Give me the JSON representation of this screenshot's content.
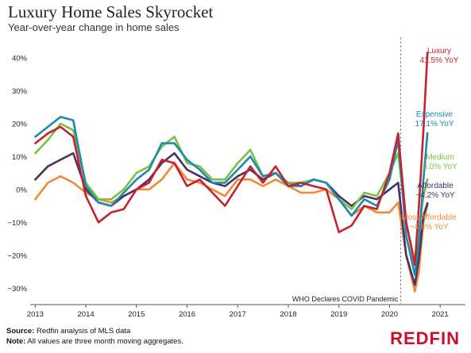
{
  "title": "Luxury Home Sales Skyrocket",
  "subtitle": "Year-over-year change in home sales",
  "footer": {
    "source_label": "Source:",
    "source_text": "Redfin analysis of MLS data",
    "note_label": "Note:",
    "note_text": "All values are three month moving aggregates."
  },
  "logo": "REDFIN",
  "chart_data": {
    "type": "line",
    "title": "Luxury Home Sales Skyrocket",
    "subtitle": "Year-over-year change in home sales",
    "xlabel": "",
    "ylabel": "",
    "xlim": [
      2012.9,
      2021.5
    ],
    "ylim": [
      -35,
      45
    ],
    "x_ticks": [
      2013,
      2014,
      2015,
      2016,
      2017,
      2018,
      2019,
      2020,
      2021
    ],
    "x_tick_labels": [
      "2013",
      "2014",
      "2015",
      "2016",
      "2017",
      "2018",
      "2019",
      "2020",
      "2021"
    ],
    "y_ticks": [
      -30,
      -20,
      -10,
      0,
      10,
      20,
      30,
      40
    ],
    "y_tick_labels": [
      "−30%",
      "−20%",
      "−10%",
      "0%",
      "10%",
      "20%",
      "30%",
      "40%"
    ],
    "grid": false,
    "annotation": {
      "x": 2020.22,
      "text": "WHO Declares COVID Pandemic"
    },
    "series": [
      {
        "name": "Most Affordable",
        "value_label": "−4.8% YoY",
        "color": "#f08a34",
        "x": [
          2013.0,
          2013.25,
          2013.5,
          2013.75,
          2014.0,
          2014.25,
          2014.5,
          2014.75,
          2015.0,
          2015.25,
          2015.5,
          2015.75,
          2016.0,
          2016.25,
          2016.5,
          2016.75,
          2017.0,
          2017.25,
          2017.5,
          2017.75,
          2018.0,
          2018.25,
          2018.5,
          2018.75,
          2019.0,
          2019.25,
          2019.5,
          2019.75,
          2020.0,
          2020.17,
          2020.33,
          2020.5,
          2020.58,
          2020.67,
          2020.75
        ],
        "y": [
          -3,
          2,
          4,
          2,
          -1,
          -3,
          -4,
          -2,
          0,
          0,
          3,
          8,
          3,
          2,
          0,
          -2,
          3,
          3,
          1,
          3,
          1,
          -1,
          -1,
          0,
          -3,
          -8,
          -5,
          -7,
          -7,
          -4,
          -20,
          -31,
          -25,
          -10,
          -4.8
        ]
      },
      {
        "name": "Affordable",
        "value_label": "−4.2% YoY",
        "color": "#4b3060",
        "x": [
          2013.0,
          2013.25,
          2013.5,
          2013.75,
          2014.0,
          2014.25,
          2014.5,
          2014.75,
          2015.0,
          2015.25,
          2015.5,
          2015.75,
          2016.0,
          2016.25,
          2016.5,
          2016.75,
          2017.0,
          2017.25,
          2017.5,
          2017.75,
          2018.0,
          2018.25,
          2018.5,
          2018.75,
          2019.0,
          2019.25,
          2019.5,
          2019.75,
          2020.0,
          2020.17,
          2020.33,
          2020.5,
          2020.58,
          2020.67,
          2020.75
        ],
        "y": [
          3,
          7,
          9,
          11,
          0,
          -4,
          -5,
          -2,
          0,
          3,
          8,
          11,
          6,
          4,
          2,
          1,
          4,
          6,
          3,
          5,
          2,
          1,
          3,
          2,
          -2,
          -5,
          -2,
          -3,
          0,
          2,
          -20,
          -29,
          -21,
          -8,
          -4.2
        ]
      },
      {
        "name": "Medium",
        "value_label": "3.0% YoY",
        "color": "#7ac143",
        "x": [
          2013.0,
          2013.25,
          2013.5,
          2013.75,
          2014.0,
          2014.25,
          2014.5,
          2014.75,
          2015.0,
          2015.25,
          2015.5,
          2015.75,
          2016.0,
          2016.25,
          2016.5,
          2016.75,
          2017.0,
          2017.25,
          2017.5,
          2017.75,
          2018.0,
          2018.25,
          2018.5,
          2018.75,
          2019.0,
          2019.25,
          2019.5,
          2019.75,
          2020.0,
          2020.17,
          2020.33,
          2020.5,
          2020.58,
          2020.67,
          2020.75
        ],
        "y": [
          11,
          15,
          20,
          18,
          2,
          -3,
          -3,
          0,
          5,
          7,
          13,
          16,
          8,
          7,
          3,
          3,
          8,
          12,
          4,
          5,
          2,
          2,
          3,
          2,
          -3,
          -6,
          -1,
          -2,
          5,
          11,
          -10,
          -22,
          -13,
          -2,
          3.0
        ]
      },
      {
        "name": "Expensive",
        "value_label": "17.1% YoY",
        "color": "#1d8ab0",
        "x": [
          2013.0,
          2013.25,
          2013.5,
          2013.75,
          2014.0,
          2014.25,
          2014.5,
          2014.75,
          2015.0,
          2015.25,
          2015.5,
          2015.75,
          2016.0,
          2016.25,
          2016.5,
          2016.75,
          2017.0,
          2017.25,
          2017.5,
          2017.75,
          2018.0,
          2018.25,
          2018.5,
          2018.75,
          2019.0,
          2019.25,
          2019.5,
          2019.75,
          2020.0,
          2020.17,
          2020.33,
          2020.5,
          2020.58,
          2020.67,
          2020.75
        ],
        "y": [
          16,
          19,
          22,
          21,
          1,
          -4,
          -5,
          -1,
          3,
          6,
          14,
          14,
          9,
          6,
          2,
          2,
          6,
          10,
          4,
          5,
          1,
          1,
          3,
          2,
          -3,
          -8,
          -3,
          -5,
          3,
          15,
          -14,
          -26,
          -16,
          3,
          17.1
        ]
      },
      {
        "name": "Luxury",
        "value_label": "41.5% YoY",
        "color": "#c8202f",
        "x": [
          2013.0,
          2013.25,
          2013.5,
          2013.75,
          2014.0,
          2014.25,
          2014.5,
          2014.75,
          2015.0,
          2015.25,
          2015.5,
          2015.75,
          2016.0,
          2016.25,
          2016.5,
          2016.75,
          2017.0,
          2017.25,
          2017.5,
          2017.75,
          2018.0,
          2018.25,
          2018.5,
          2018.75,
          2019.0,
          2019.25,
          2019.5,
          2019.75,
          2020.0,
          2020.17,
          2020.33,
          2020.5,
          2020.58,
          2020.67,
          2020.75
        ],
        "y": [
          14,
          17,
          19,
          16,
          -2,
          -10,
          -7,
          -6,
          0,
          2,
          9,
          8,
          1,
          3,
          -1,
          -5,
          1,
          7,
          2,
          7,
          1,
          2,
          1,
          0,
          -13,
          -11,
          -5,
          -6,
          5,
          17,
          -10,
          -23,
          -5,
          18,
          41.5
        ]
      }
    ]
  }
}
